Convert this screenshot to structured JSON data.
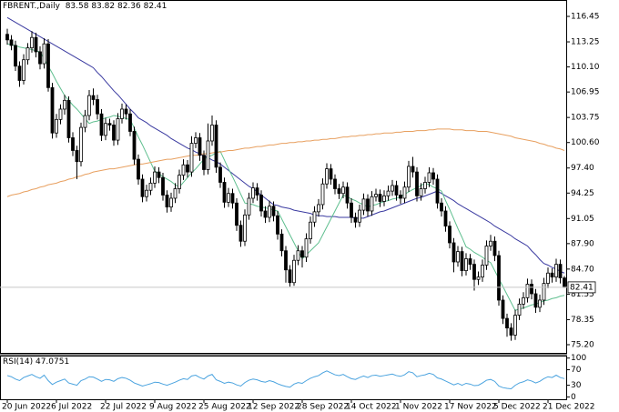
{
  "chart_data": {
    "type": "candlestick",
    "title": "FBRENT.,Daily",
    "categories": [
      "20 Jun 2022",
      null,
      null,
      null,
      null,
      null,
      null,
      null,
      null,
      null,
      null,
      null,
      "6 Jul 2022",
      null,
      null,
      null,
      null,
      null,
      null,
      null,
      null,
      null,
      null,
      null,
      "22 Jul 2022",
      null,
      null,
      null,
      null,
      null,
      null,
      null,
      null,
      null,
      null,
      null,
      "9 Aug 2022",
      null,
      null,
      null,
      null,
      null,
      null,
      null,
      null,
      null,
      null,
      null,
      "25 Aug 2022",
      null,
      null,
      null,
      null,
      null,
      null,
      null,
      null,
      null,
      null,
      null,
      "12 Sep 2022",
      null,
      null,
      null,
      null,
      null,
      null,
      null,
      null,
      null,
      null,
      null,
      "28 Sep 2022",
      null,
      null,
      null,
      null,
      null,
      null,
      null,
      null,
      null,
      null,
      null,
      "14 Oct 2022",
      null,
      null,
      null,
      null,
      null,
      null,
      null,
      null,
      null,
      null,
      null,
      "1 Nov 2022",
      null,
      null,
      null,
      null,
      null,
      null,
      null,
      null,
      null,
      null,
      null,
      "17 Nov 2022",
      null,
      null,
      null,
      null,
      null,
      null,
      null,
      null,
      null,
      null,
      null,
      "5 Dec 2022",
      null,
      null,
      null,
      null,
      null,
      null,
      null,
      null,
      null,
      null,
      null,
      "21 Dec 2022",
      null,
      null,
      null,
      null
    ],
    "open": [
      114.2,
      113.5,
      112.8,
      110.2,
      108.4,
      111.0,
      112.5,
      113.8,
      112.0,
      110.5,
      113.0,
      107.5,
      101.8,
      103.5,
      104.8,
      105.9,
      101.2,
      99.6,
      98.2,
      102.5,
      104.0,
      106.5,
      106.0,
      104.2,
      101.5,
      103.0,
      102.8,
      100.9,
      103.6,
      104.8,
      104.2,
      102.0,
      98.5,
      96.0,
      93.8,
      94.6,
      95.5,
      96.9,
      96.2,
      94.0,
      92.5,
      93.6,
      94.8,
      96.5,
      97.8,
      96.9,
      100.5,
      101.2,
      99.0,
      97.2,
      100.8,
      102.8,
      97.5,
      95.6,
      93.1,
      94.2,
      93.0,
      90.2,
      88.2,
      91.5,
      93.6,
      94.9,
      94.0,
      92.0,
      91.2,
      92.6,
      91.4,
      89.1,
      87.0,
      84.6,
      83.0,
      85.8,
      87.0,
      86.2,
      88.5,
      90.6,
      91.9,
      92.8,
      95.4,
      97.3,
      96.0,
      94.8,
      94.2,
      95.0,
      93.0,
      91.2,
      90.6,
      92.1,
      93.5,
      92.0,
      93.8,
      94.1,
      93.2,
      93.9,
      94.5,
      95.2,
      94.0,
      93.6,
      95.0,
      97.6,
      96.9,
      93.9,
      94.8,
      95.6,
      96.8,
      96.0,
      93.0,
      92.0,
      90.1,
      88.0,
      85.6,
      86.9,
      84.5,
      86.0,
      85.3,
      83.4,
      83.7,
      85.2,
      87.6,
      88.2,
      86.4,
      80.8,
      78.5,
      77.3,
      76.4,
      78.9,
      80.3,
      81.1,
      82.8,
      81.6,
      79.9,
      80.8,
      82.9,
      84.2,
      83.7,
      85.3,
      83.58
    ],
    "high": [
      114.9,
      114.1,
      113.4,
      110.8,
      111.7,
      113.1,
      114.6,
      114.4,
      112.7,
      113.7,
      113.6,
      108.1,
      104.2,
      105.4,
      106.6,
      106.4,
      101.9,
      100.2,
      103.1,
      104.7,
      107.2,
      107.4,
      106.6,
      104.8,
      103.7,
      103.6,
      103.4,
      104.3,
      105.5,
      105.4,
      104.8,
      102.6,
      99.1,
      96.6,
      95.3,
      96.2,
      97.6,
      97.5,
      96.8,
      94.6,
      94.3,
      95.5,
      97.2,
      98.5,
      98.4,
      101.4,
      101.9,
      101.8,
      99.6,
      103.0,
      104.0,
      103.4,
      98.1,
      96.2,
      94.9,
      94.8,
      93.6,
      90.8,
      92.2,
      94.3,
      95.6,
      95.5,
      94.6,
      92.6,
      93.3,
      93.2,
      92.0,
      89.7,
      87.6,
      85.2,
      86.5,
      87.7,
      87.6,
      89.2,
      91.3,
      92.6,
      93.5,
      96.1,
      98.0,
      97.9,
      96.6,
      95.4,
      95.7,
      95.6,
      93.6,
      91.8,
      92.8,
      94.2,
      94.1,
      94.5,
      94.8,
      94.7,
      94.6,
      95.2,
      95.9,
      95.8,
      94.6,
      95.7,
      98.3,
      98.8,
      97.5,
      95.5,
      96.3,
      97.5,
      97.4,
      96.6,
      93.6,
      92.6,
      90.7,
      88.6,
      87.6,
      87.5,
      86.7,
      86.6,
      85.9,
      84.4,
      85.9,
      88.3,
      89.0,
      88.8,
      87.0,
      81.4,
      79.1,
      77.9,
      79.6,
      81.0,
      81.8,
      83.5,
      83.4,
      82.2,
      81.5,
      83.6,
      84.9,
      84.8,
      86.0,
      85.9,
      83.82
    ],
    "low": [
      112.9,
      112.2,
      109.6,
      107.6,
      107.9,
      110.4,
      111.9,
      111.3,
      109.8,
      109.9,
      107.0,
      101.1,
      101.2,
      102.9,
      104.1,
      100.6,
      98.9,
      96.0,
      97.6,
      101.9,
      103.4,
      105.3,
      103.5,
      100.8,
      100.9,
      102.1,
      100.2,
      100.3,
      103.0,
      103.5,
      101.4,
      97.8,
      95.3,
      93.1,
      93.2,
      94.0,
      94.9,
      95.5,
      93.3,
      91.8,
      91.9,
      93.0,
      94.2,
      95.9,
      96.2,
      96.3,
      99.9,
      98.3,
      96.5,
      96.6,
      100.2,
      96.8,
      94.9,
      92.4,
      92.5,
      92.3,
      89.5,
      87.5,
      87.6,
      90.9,
      93.0,
      93.3,
      91.3,
      90.5,
      90.6,
      90.7,
      88.4,
      86.3,
      83.0,
      82.5,
      82.6,
      85.2,
      84.9,
      85.6,
      87.9,
      90.0,
      91.3,
      92.2,
      94.8,
      95.3,
      94.1,
      93.5,
      93.6,
      92.3,
      90.5,
      89.9,
      90.0,
      91.5,
      91.3,
      91.4,
      93.2,
      92.5,
      92.6,
      93.3,
      93.9,
      93.3,
      92.9,
      93.0,
      94.4,
      96.2,
      93.2,
      93.3,
      94.2,
      95.0,
      95.3,
      92.3,
      91.3,
      89.4,
      87.3,
      84.3,
      85.0,
      83.8,
      83.9,
      84.6,
      82.0,
      82.7,
      83.1,
      84.6,
      87.0,
      85.7,
      80.1,
      77.8,
      76.2,
      75.7,
      75.8,
      78.3,
      79.7,
      80.5,
      80.9,
      79.2,
      79.3,
      80.2,
      82.3,
      83.0,
      83.1,
      82.9,
      82.36
    ],
    "close": [
      113.5,
      112.8,
      110.2,
      108.4,
      111.0,
      112.5,
      113.8,
      112.0,
      110.5,
      113.0,
      107.5,
      101.8,
      103.5,
      104.8,
      105.9,
      101.2,
      99.6,
      98.2,
      102.5,
      104.0,
      106.5,
      106.0,
      104.2,
      101.5,
      103.0,
      102.8,
      100.9,
      103.6,
      104.8,
      104.2,
      102.0,
      98.5,
      96.0,
      93.8,
      94.6,
      95.5,
      96.9,
      96.2,
      94.0,
      92.5,
      93.6,
      94.8,
      96.5,
      97.8,
      96.9,
      100.5,
      101.2,
      99.0,
      97.2,
      100.8,
      102.8,
      97.5,
      95.6,
      93.1,
      94.2,
      93.0,
      90.2,
      88.2,
      91.5,
      93.6,
      94.9,
      94.0,
      92.0,
      91.2,
      92.6,
      91.4,
      89.1,
      87.0,
      84.6,
      83.0,
      85.8,
      87.0,
      86.2,
      88.5,
      90.6,
      91.9,
      92.8,
      95.4,
      97.3,
      96.0,
      94.8,
      94.2,
      95.0,
      93.0,
      91.2,
      90.6,
      92.1,
      93.5,
      92.0,
      93.8,
      94.1,
      93.2,
      93.9,
      94.5,
      95.2,
      94.0,
      93.6,
      95.0,
      97.6,
      96.9,
      93.9,
      94.8,
      95.6,
      96.8,
      96.0,
      93.0,
      92.0,
      90.1,
      88.0,
      85.6,
      86.9,
      84.5,
      86.0,
      85.3,
      83.4,
      83.7,
      85.2,
      87.6,
      88.2,
      86.4,
      80.8,
      78.5,
      77.3,
      76.4,
      78.9,
      80.3,
      81.1,
      82.8,
      81.6,
      79.9,
      80.8,
      82.9,
      84.2,
      83.7,
      85.3,
      83.6,
      82.41
    ],
    "up_color": "#ffffff",
    "down_color": "#000000",
    "series": [
      {
        "color": "#3a3aa0",
        "values": [
          116.3,
          116.0,
          115.7,
          115.4,
          115.1,
          114.8,
          114.5,
          114.2,
          113.9,
          113.6,
          113.3,
          113.0,
          112.7,
          112.4,
          112.1,
          111.8,
          111.5,
          111.2,
          110.9,
          110.6,
          110.3,
          110.0,
          109.4,
          108.9,
          108.3,
          107.7,
          107.1,
          106.6,
          106.0,
          105.4,
          104.8,
          104.3,
          103.7,
          103.4,
          103.1,
          102.7,
          102.4,
          102.1,
          101.8,
          101.5,
          101.1,
          100.8,
          100.5,
          100.2,
          99.9,
          99.7,
          99.4,
          99.2,
          98.9,
          98.7,
          98.4,
          98.2,
          97.9,
          97.5,
          97.1,
          96.7,
          96.3,
          95.9,
          95.5,
          95.1,
          94.8,
          94.4,
          94.0,
          93.6,
          93.2,
          92.8,
          92.7,
          92.5,
          92.4,
          92.3,
          92.1,
          92.0,
          91.9,
          91.8,
          91.7,
          91.5,
          91.4,
          91.4,
          91.3,
          91.3,
          91.3,
          91.2,
          91.2,
          91.2,
          91.2,
          91.1,
          91.1,
          91.1,
          91.3,
          91.5,
          91.7,
          91.9,
          92.0,
          92.2,
          92.4,
          92.6,
          92.8,
          93.0,
          93.2,
          93.4,
          93.6,
          93.7,
          93.9,
          94.1,
          94.3,
          94.5,
          94.2,
          93.9,
          93.6,
          93.3,
          92.9,
          92.6,
          92.3,
          92.0,
          91.7,
          91.4,
          91.1,
          90.8,
          90.5,
          90.1,
          89.8,
          89.5,
          89.2,
          88.9,
          88.5,
          88.2,
          87.9,
          87.6,
          87.0,
          86.5,
          85.9,
          85.4,
          85.2,
          84.9,
          84.7,
          84.4,
          84.2
        ]
      },
      {
        "color": "#5fbf8f",
        "values": [
          113.0,
          112.9,
          112.8,
          112.6,
          112.5,
          112.4,
          112.3,
          112.1,
          112.0,
          111.1,
          110.2,
          109.3,
          108.3,
          107.4,
          106.5,
          105.9,
          105.3,
          104.8,
          104.2,
          103.6,
          103.0,
          103.2,
          103.3,
          103.5,
          103.7,
          103.8,
          104.0,
          103.9,
          103.8,
          103.6,
          103.5,
          102.4,
          101.3,
          100.3,
          99.2,
          98.1,
          97.0,
          96.7,
          96.3,
          96.0,
          95.7,
          95.3,
          95.0,
          95.6,
          96.2,
          96.8,
          97.3,
          97.9,
          98.5,
          98.8,
          99.0,
          99.3,
          99.5,
          98.4,
          97.3,
          96.3,
          95.2,
          94.1,
          93.0,
          92.9,
          92.8,
          92.6,
          92.5,
          92.4,
          92.3,
          92.1,
          92.0,
          91.0,
          90.0,
          89.0,
          88.0,
          87.0,
          86.0,
          86.5,
          87.0,
          87.5,
          88.0,
          89.0,
          90.0,
          91.0,
          92.0,
          93.0,
          94.0,
          93.8,
          93.5,
          93.3,
          93.0,
          92.8,
          92.5,
          92.7,
          92.8,
          93.0,
          93.2,
          93.3,
          93.5,
          93.6,
          93.8,
          94.1,
          94.4,
          94.7,
          94.9,
          95.2,
          95.5,
          95.3,
          95.0,
          94.8,
          94.5,
          93.3,
          92.2,
          91.0,
          89.8,
          88.7,
          87.5,
          87.2,
          86.8,
          86.5,
          86.2,
          85.8,
          85.5,
          84.5,
          83.5,
          82.5,
          81.5,
          80.5,
          79.5,
          79.7,
          79.8,
          80.0,
          80.2,
          80.3,
          80.5,
          80.7,
          80.8,
          81.0,
          81.1,
          81.3,
          81.4
        ]
      },
      {
        "color": "#e8a060",
        "values": [
          93.8,
          94.0,
          94.1,
          94.2,
          94.4,
          94.5,
          94.7,
          94.8,
          95.0,
          95.1,
          95.3,
          95.4,
          95.5,
          95.7,
          95.8,
          96.0,
          96.1,
          96.3,
          96.4,
          96.6,
          96.7,
          96.9,
          97.0,
          97.1,
          97.2,
          97.3,
          97.3,
          97.4,
          97.5,
          97.6,
          97.7,
          97.8,
          97.9,
          97.9,
          98.0,
          98.1,
          98.2,
          98.3,
          98.4,
          98.5,
          98.5,
          98.6,
          98.7,
          98.8,
          98.9,
          99.0,
          99.0,
          99.1,
          99.2,
          99.2,
          99.3,
          99.4,
          99.4,
          99.5,
          99.6,
          99.6,
          99.7,
          99.8,
          99.9,
          99.9,
          100.0,
          100.1,
          100.1,
          100.2,
          100.3,
          100.3,
          100.4,
          100.5,
          100.5,
          100.6,
          100.6,
          100.7,
          100.7,
          100.8,
          100.8,
          100.9,
          100.9,
          101.0,
          101.0,
          101.1,
          101.1,
          101.2,
          101.3,
          101.3,
          101.4,
          101.4,
          101.5,
          101.5,
          101.6,
          101.6,
          101.7,
          101.7,
          101.8,
          101.8,
          101.8,
          101.9,
          101.9,
          102.0,
          102.0,
          102.0,
          102.1,
          102.1,
          102.1,
          102.2,
          102.2,
          102.3,
          102.3,
          102.3,
          102.3,
          102.2,
          102.2,
          102.2,
          102.1,
          102.1,
          102.1,
          102.0,
          102.0,
          102.0,
          101.9,
          101.8,
          101.7,
          101.6,
          101.5,
          101.4,
          101.2,
          101.1,
          101.0,
          100.9,
          100.8,
          100.7,
          100.5,
          100.4,
          100.2,
          100.1,
          99.9,
          99.8,
          99.6
        ]
      }
    ],
    "ylim": [
      74.17,
      118.51
    ],
    "yticks": [
      116.45,
      113.25,
      {
        "value": 110.1,
        "label": "110.10"
      },
      106.95,
      103.75,
      {
        "value": 100.6,
        "label": "100.60"
      },
      {
        "value": 97.4,
        "label": "97.40"
      },
      94.25,
      91.05,
      {
        "value": 87.9,
        "label": "87.90"
      },
      {
        "value": 84.7,
        "label": "84.70"
      },
      81.55,
      78.35,
      {
        "value": 75.2,
        "label": "75.20"
      }
    ],
    "rsi": {
      "label": "RSI(14)",
      "color": "#4aa3df",
      "ylim": [
        -6,
        104
      ],
      "yticks": [
        100,
        70,
        30,
        0
      ],
      "values": [
        55,
        52,
        46,
        42,
        50,
        54,
        58,
        52,
        48,
        56,
        42,
        32,
        38,
        42,
        46,
        36,
        33,
        30,
        42,
        46,
        52,
        51,
        46,
        40,
        45,
        44,
        40,
        47,
        50,
        48,
        43,
        36,
        32,
        28,
        31,
        34,
        38,
        37,
        33,
        30,
        34,
        38,
        43,
        47,
        45,
        54,
        56,
        50,
        46,
        54,
        58,
        44,
        40,
        35,
        38,
        36,
        31,
        28,
        37,
        43,
        46,
        44,
        40,
        38,
        42,
        39,
        34,
        30,
        27,
        25,
        33,
        37,
        35,
        42,
        48,
        52,
        55,
        62,
        67,
        62,
        57,
        55,
        58,
        52,
        47,
        45,
        50,
        54,
        50,
        55,
        56,
        53,
        55,
        57,
        59,
        55,
        53,
        57,
        65,
        62,
        52,
        55,
        57,
        61,
        58,
        49,
        46,
        41,
        36,
        31,
        35,
        30,
        35,
        33,
        29,
        30,
        36,
        43,
        45,
        40,
        28,
        24,
        22,
        21,
        30,
        36,
        39,
        44,
        41,
        36,
        40,
        47,
        52,
        50,
        56,
        50,
        47.0751
      ]
    }
  }
}
